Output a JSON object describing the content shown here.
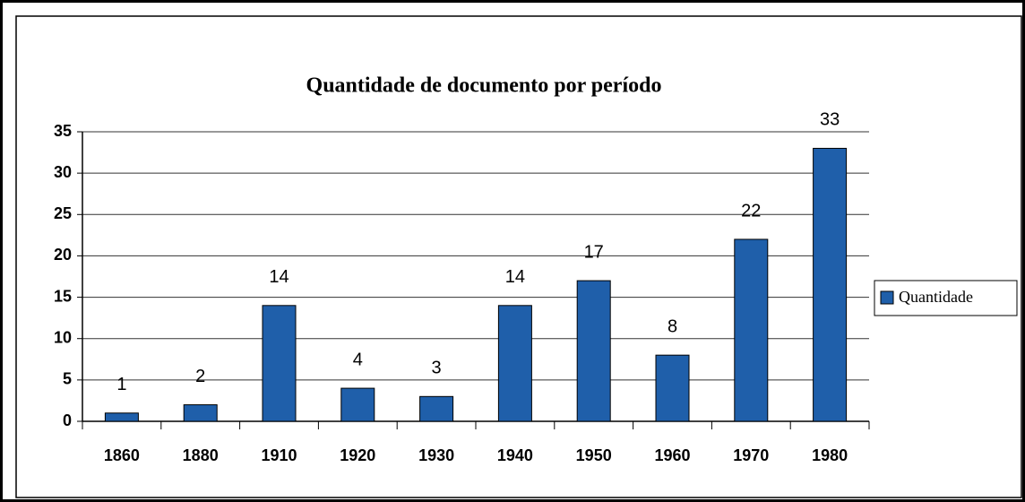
{
  "chart_data": {
    "type": "bar",
    "title": "Quantidade de documento por período",
    "categories": [
      "1860",
      "1880",
      "1910",
      "1920",
      "1930",
      "1940",
      "1950",
      "1960",
      "1970",
      "1980"
    ],
    "series": [
      {
        "name": "Quantidade",
        "color": "#1f5faa",
        "values": [
          1,
          2,
          14,
          4,
          3,
          14,
          17,
          8,
          22,
          33
        ]
      }
    ],
    "ylim": [
      0,
      35
    ],
    "yticks": [
      0,
      5,
      10,
      15,
      20,
      25,
      30,
      35
    ],
    "grid": true,
    "legend": "right"
  }
}
